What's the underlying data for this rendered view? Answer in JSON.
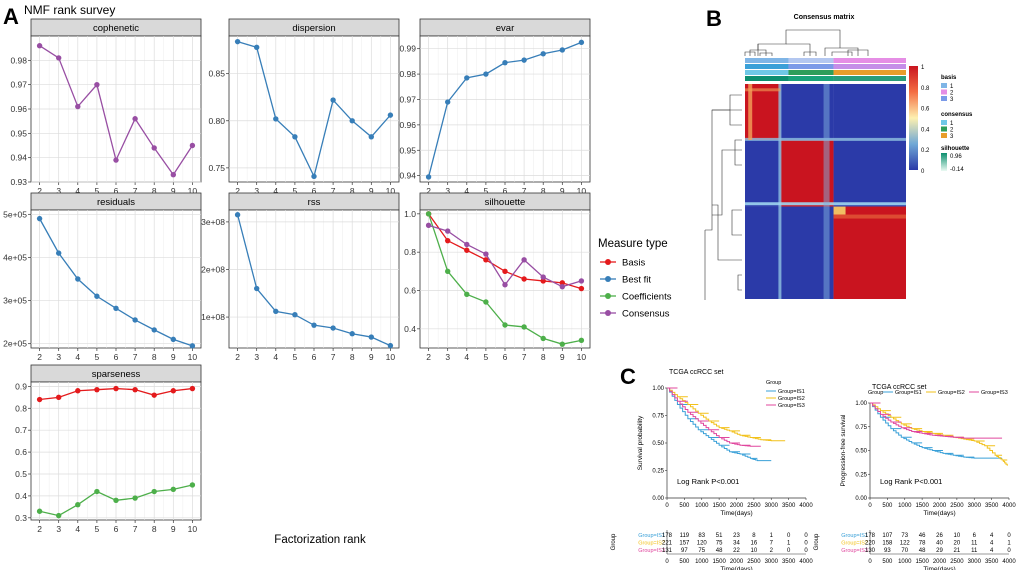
{
  "panel_labels": {
    "a": "A",
    "b": "B",
    "c": "C"
  },
  "nmf": {
    "title": "NMF rank survey",
    "xlabel": "Factorization rank",
    "legend_title": "Measure type",
    "legend": [
      {
        "name": "Basis",
        "color": "#e41a1c"
      },
      {
        "name": "Best fit",
        "color": "#377eb8"
      },
      {
        "name": "Coefficients",
        "color": "#4daf4a"
      },
      {
        "name": "Consensus",
        "color": "#984ea3"
      }
    ]
  },
  "heatmap": {
    "title": "Consensus matrix",
    "colorbar_ticks": [
      "1",
      "0.8",
      "0.6",
      "0.4",
      "0.2",
      "0"
    ],
    "legend_basis_title": "basis",
    "legend_basis": [
      {
        "label": "1",
        "color": "#7fb5e6"
      },
      {
        "label": "2",
        "color": "#e58ee5"
      },
      {
        "label": "3",
        "color": "#7b9ae8"
      }
    ],
    "legend_consensus_title": "consensus",
    "legend_consensus": [
      {
        "label": "1",
        "color": "#6fc8e6"
      },
      {
        "label": "2",
        "color": "#2e9e5a"
      },
      {
        "label": "3",
        "color": "#e89d2b"
      }
    ],
    "legend_silhouette_title": "silhouette",
    "legend_silhouette_ticks": [
      "0.96",
      "-0.14"
    ]
  },
  "survival": {
    "group_legend_title": "Group",
    "groups": [
      {
        "name": "Group=IS1",
        "color": "#3aa0d8"
      },
      {
        "name": "Group=IS2",
        "color": "#f2c11a"
      },
      {
        "name": "Group=IS3",
        "color": "#e0479e"
      }
    ],
    "risk_ylabel": "Group",
    "risk_times": [
      0,
      500,
      1000,
      1500,
      2000,
      2500,
      3000,
      3500,
      4000
    ],
    "left": {
      "title": "TCGA ccRCC set",
      "ylabel": "Survival probability",
      "xlabel": "Time(days)",
      "logrank": "Log Rank P<0.001",
      "risk_table": [
        [
          178,
          119,
          83,
          51,
          23,
          8,
          1,
          0,
          0
        ],
        [
          221,
          157,
          120,
          75,
          34,
          16,
          7,
          1,
          0
        ],
        [
          131,
          97,
          75,
          48,
          22,
          10,
          2,
          0,
          0
        ]
      ]
    },
    "right": {
      "title": "TCGA ccRCC set",
      "ylabel": "Progression-free survival",
      "xlabel": "Time(days)",
      "logrank": "Log Rank P<0.001",
      "risk_table": [
        [
          178,
          107,
          73,
          46,
          26,
          10,
          6,
          4,
          0
        ],
        [
          220,
          158,
          122,
          78,
          40,
          20,
          11,
          4,
          1
        ],
        [
          130,
          93,
          70,
          48,
          29,
          21,
          11,
          4,
          0
        ]
      ]
    }
  },
  "chart_data": [
    {
      "type": "line",
      "title": "cophenetic",
      "x": [
        2,
        3,
        4,
        5,
        6,
        7,
        8,
        9,
        10
      ],
      "series": [
        {
          "name": "Consensus",
          "color": "#984ea3",
          "values": [
            0.986,
            0.981,
            0.961,
            0.97,
            0.939,
            0.956,
            0.944,
            0.933,
            0.945
          ]
        }
      ],
      "ylim": [
        0.93,
        0.99
      ],
      "yticks": [
        0.93,
        0.94,
        0.95,
        0.96,
        0.97,
        0.98
      ],
      "ytick_labels": [
        "0.93",
        "0.94",
        "0.95",
        "0.96",
        "0.97",
        "0.98"
      ]
    },
    {
      "type": "line",
      "title": "dispersion",
      "x": [
        2,
        3,
        4,
        5,
        6,
        7,
        8,
        9,
        10
      ],
      "series": [
        {
          "name": "Consensus",
          "color": "#377eb8",
          "values": [
            0.884,
            0.878,
            0.802,
            0.783,
            0.741,
            0.822,
            0.8,
            0.783,
            0.806
          ]
        }
      ],
      "ylim": [
        0.735,
        0.89
      ],
      "yticks": [
        0.75,
        0.8,
        0.85
      ],
      "ytick_labels": [
        "0.75",
        "0.80",
        "0.85"
      ]
    },
    {
      "type": "line",
      "title": "evar",
      "x": [
        2,
        3,
        4,
        5,
        6,
        7,
        8,
        9,
        10
      ],
      "series": [
        {
          "name": "Best fit",
          "color": "#377eb8",
          "values": [
            0.9395,
            0.969,
            0.9785,
            0.98,
            0.9845,
            0.9855,
            0.988,
            0.9895,
            0.9925
          ]
        }
      ],
      "ylim": [
        0.9375,
        0.995
      ],
      "yticks": [
        0.94,
        0.95,
        0.96,
        0.97,
        0.98,
        0.99
      ],
      "ytick_labels": [
        "0.94",
        "0.95",
        "0.96",
        "0.97",
        "0.98",
        "0.99"
      ]
    },
    {
      "type": "line",
      "title": "residuals",
      "x": [
        2,
        3,
        4,
        5,
        6,
        7,
        8,
        9,
        10
      ],
      "series": [
        {
          "name": "Best fit",
          "color": "#377eb8",
          "values": [
            490000,
            410000,
            350000,
            310000,
            282000,
            255000,
            232000,
            210000,
            195000
          ]
        }
      ],
      "ylim": [
        190000,
        510000
      ],
      "yticks": [
        200000,
        300000,
        400000,
        500000
      ],
      "ytick_labels": [
        "2e+05",
        "3e+05",
        "4e+05",
        "5e+05"
      ]
    },
    {
      "type": "line",
      "title": "rss",
      "x": [
        2,
        3,
        4,
        5,
        6,
        7,
        8,
        9,
        10
      ],
      "series": [
        {
          "name": "Best fit",
          "color": "#377eb8",
          "values": [
            315000000,
            160000000,
            112000000,
            105000000,
            83000000,
            77000000,
            65000000,
            58000000,
            40000000
          ]
        }
      ],
      "ylim": [
        35000000,
        325000000
      ],
      "yticks": [
        100000000,
        200000000,
        300000000
      ],
      "ytick_labels": [
        "1e+08",
        "2e+08",
        "3e+08"
      ]
    },
    {
      "type": "line",
      "title": "silhouette",
      "x": [
        2,
        3,
        4,
        5,
        6,
        7,
        8,
        9,
        10
      ],
      "series": [
        {
          "name": "Basis",
          "color": "#e41a1c",
          "values": [
            1.0,
            0.86,
            0.81,
            0.76,
            0.7,
            0.66,
            0.65,
            0.64,
            0.61
          ]
        },
        {
          "name": "Coefficients",
          "color": "#4daf4a",
          "values": [
            1.0,
            0.7,
            0.58,
            0.54,
            0.42,
            0.41,
            0.35,
            0.32,
            0.34
          ]
        },
        {
          "name": "Consensus",
          "color": "#984ea3",
          "values": [
            0.94,
            0.91,
            0.84,
            0.79,
            0.63,
            0.76,
            0.67,
            0.62,
            0.65
          ]
        }
      ],
      "ylim": [
        0.3,
        1.02
      ],
      "yticks": [
        0.4,
        0.6,
        0.8,
        1.0
      ],
      "ytick_labels": [
        "0.4",
        "0.6",
        "0.8",
        "1.0"
      ]
    },
    {
      "type": "line",
      "title": "sparseness",
      "x": [
        2,
        3,
        4,
        5,
        6,
        7,
        8,
        9,
        10
      ],
      "series": [
        {
          "name": "Basis",
          "color": "#e41a1c",
          "values": [
            0.84,
            0.85,
            0.88,
            0.885,
            0.89,
            0.885,
            0.86,
            0.88,
            0.89
          ]
        },
        {
          "name": "Coefficients",
          "color": "#4daf4a",
          "values": [
            0.33,
            0.31,
            0.36,
            0.42,
            0.38,
            0.39,
            0.42,
            0.43,
            0.45
          ]
        }
      ],
      "ylim": [
        0.29,
        0.92
      ],
      "yticks": [
        0.3,
        0.4,
        0.5,
        0.6,
        0.7,
        0.8,
        0.9
      ],
      "ytick_labels": [
        "0.3",
        "0.4",
        "0.5",
        "0.6",
        "0.7",
        "0.8",
        "0.9"
      ]
    },
    {
      "type": "line",
      "title": "TCGA ccRCC set",
      "ylabel": "Survival probability",
      "xlabel": "Time(days)",
      "xlim": [
        0,
        4000
      ],
      "ylim": [
        0,
        1
      ],
      "xticks": [
        0,
        500,
        1000,
        1500,
        2000,
        2500,
        3000,
        3500,
        4000
      ],
      "yticks": [
        0,
        0.25,
        0.5,
        0.75,
        1.0
      ],
      "ytick_labels": [
        "0.00",
        "0.25",
        "0.50",
        "0.75",
        "1.00"
      ],
      "series": [
        {
          "name": "Group=IS1",
          "color": "#3aa0d8",
          "x": [
            0,
            300,
            600,
            900,
            1200,
            1500,
            1800,
            2100,
            2400,
            2600,
            3000
          ],
          "values": [
            1.0,
            0.85,
            0.72,
            0.62,
            0.55,
            0.48,
            0.42,
            0.4,
            0.36,
            0.34,
            0.34
          ]
        },
        {
          "name": "Group=IS2",
          "color": "#f2c11a",
          "x": [
            0,
            300,
            600,
            900,
            1200,
            1500,
            1800,
            2100,
            2400,
            2700,
            3000,
            3400
          ],
          "values": [
            1.0,
            0.92,
            0.85,
            0.77,
            0.7,
            0.64,
            0.61,
            0.57,
            0.55,
            0.53,
            0.52,
            0.52
          ]
        },
        {
          "name": "Group=IS3",
          "color": "#e0479e",
          "x": [
            0,
            300,
            600,
            900,
            1200,
            1500,
            1800,
            2100,
            2400,
            2700
          ],
          "values": [
            1.0,
            0.88,
            0.78,
            0.7,
            0.62,
            0.55,
            0.5,
            0.48,
            0.47,
            0.47
          ]
        }
      ]
    },
    {
      "type": "line",
      "title": "TCGA ccRCC set",
      "ylabel": "Progression-free survival",
      "xlabel": "Time(days)",
      "xlim": [
        0,
        4000
      ],
      "ylim": [
        0,
        1
      ],
      "xticks": [
        0,
        500,
        1000,
        1500,
        2000,
        2500,
        3000,
        3500,
        4000
      ],
      "yticks": [
        0,
        0.25,
        0.5,
        0.75,
        1.0
      ],
      "ytick_labels": [
        "0.00",
        "0.25",
        "0.50",
        "0.75",
        "1.00"
      ],
      "series": [
        {
          "name": "Group=IS1",
          "color": "#3aa0d8",
          "x": [
            0,
            300,
            600,
            900,
            1200,
            1500,
            1800,
            2100,
            2400,
            2700,
            3000,
            3400,
            3800
          ],
          "values": [
            1.0,
            0.85,
            0.73,
            0.64,
            0.58,
            0.53,
            0.5,
            0.47,
            0.45,
            0.43,
            0.42,
            0.42,
            0.42
          ]
        },
        {
          "name": "Group=IS2",
          "color": "#f2c11a",
          "x": [
            0,
            300,
            600,
            900,
            1200,
            1500,
            1800,
            2100,
            2400,
            2700,
            3000,
            3300,
            3600,
            3800,
            3950
          ],
          "values": [
            1.0,
            0.92,
            0.85,
            0.78,
            0.73,
            0.7,
            0.68,
            0.66,
            0.64,
            0.62,
            0.6,
            0.55,
            0.45,
            0.4,
            0.34
          ]
        },
        {
          "name": "Group=IS3",
          "color": "#e0479e",
          "x": [
            0,
            300,
            600,
            900,
            1200,
            1500,
            1800,
            2100,
            2400,
            2700,
            3000,
            3400,
            3800
          ],
          "values": [
            1.0,
            0.88,
            0.8,
            0.74,
            0.7,
            0.68,
            0.66,
            0.65,
            0.64,
            0.63,
            0.63,
            0.63,
            0.63
          ]
        }
      ]
    }
  ]
}
